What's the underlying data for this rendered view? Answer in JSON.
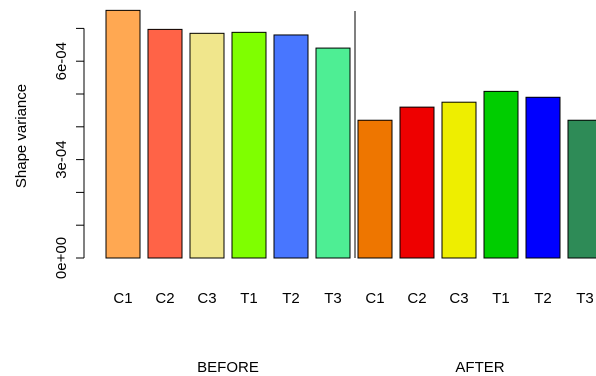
{
  "chart_data": {
    "type": "bar",
    "ylabel": "Shape variance",
    "ylim": [
      0,
      0.00075
    ],
    "yticks": [
      0,
      0.0001,
      0.0002,
      0.0003,
      0.0004,
      0.0005,
      0.0006,
      0.0007
    ],
    "ytick_labels": [
      {
        "value": 0,
        "label": "0e+00"
      },
      {
        "value": 0.0003,
        "label": "3e-04"
      },
      {
        "value": 0.0006,
        "label": "6e-04"
      }
    ],
    "grid": false,
    "groups": [
      {
        "label": "BEFORE",
        "bars": [
          {
            "category": "C1",
            "value": 0.000755,
            "color": "#FFA852"
          },
          {
            "category": "C2",
            "value": 0.000697,
            "color": "#FF6347"
          },
          {
            "category": "C3",
            "value": 0.000685,
            "color": "#F0E68C"
          },
          {
            "category": "T1",
            "value": 0.000688,
            "color": "#7FFF00"
          },
          {
            "category": "T2",
            "value": 0.00068,
            "color": "#4876FF"
          },
          {
            "category": "T3",
            "value": 0.00064,
            "color": "#4EEE94"
          }
        ]
      },
      {
        "label": "AFTER",
        "bars": [
          {
            "category": "C1",
            "value": 0.00042,
            "color": "#EE7600"
          },
          {
            "category": "C2",
            "value": 0.00046,
            "color": "#EE0000"
          },
          {
            "category": "C3",
            "value": 0.000475,
            "color": "#EEEE00"
          },
          {
            "category": "T1",
            "value": 0.000508,
            "color": "#00CD00"
          },
          {
            "category": "T2",
            "value": 0.00049,
            "color": "#0000FF"
          },
          {
            "category": "T3",
            "value": 0.00042,
            "color": "#2E8B57"
          }
        ]
      }
    ]
  }
}
